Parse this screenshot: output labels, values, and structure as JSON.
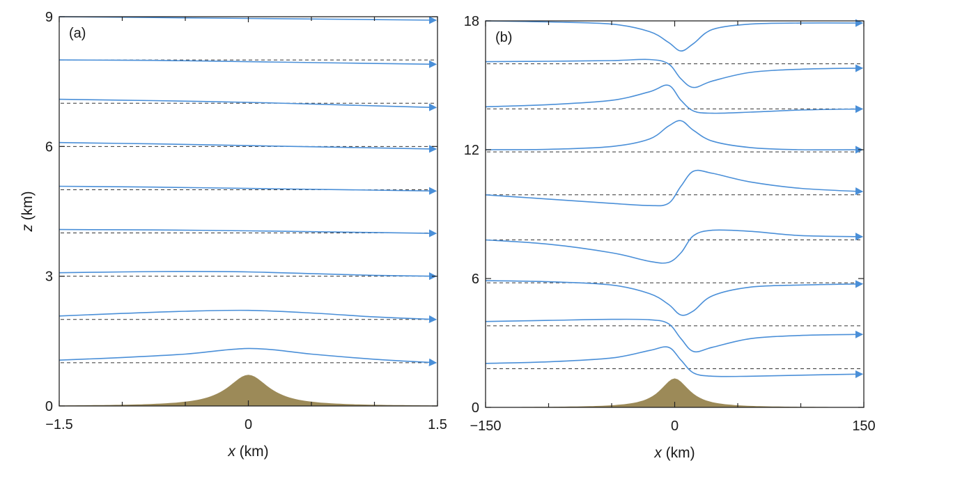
{
  "chart_data": [
    {
      "type": "line",
      "panel_label": "(a)",
      "xlabel_var": "x",
      "xlabel_unit": " (km)",
      "ylabel_var": "z",
      "ylabel_unit": " (km)",
      "xlim": [
        -1.5,
        1.5
      ],
      "ylim": [
        0,
        9
      ],
      "xticks": [
        -1.5,
        0,
        1.5
      ],
      "xtick_labels": [
        "−1.5",
        "0",
        "1.5"
      ],
      "yticks": [
        0,
        3,
        6,
        9
      ],
      "ytick_labels": [
        "0",
        "3",
        "6",
        "9"
      ],
      "minor_xticks": [
        -1.0,
        -0.5,
        0.5,
        1.0
      ],
      "terrain": {
        "peak_height_km": 0.72,
        "half_width_km": 0.2
      },
      "dashed_baselines": [
        1,
        2,
        3,
        4,
        5,
        6,
        7,
        8
      ],
      "streamlines": [
        {
          "x": [
            -1.5,
            -1.0,
            -0.5,
            -0.2,
            0.0,
            0.2,
            0.5,
            1.0,
            1.5
          ],
          "y": [
            1.06,
            1.12,
            1.2,
            1.29,
            1.33,
            1.3,
            1.2,
            1.08,
            1.0
          ]
        },
        {
          "x": [
            -1.5,
            -1.0,
            -0.5,
            0.0,
            0.5,
            1.0,
            1.5
          ],
          "y": [
            2.08,
            2.14,
            2.19,
            2.21,
            2.15,
            2.06,
            2.0
          ]
        },
        {
          "x": [
            -1.5,
            -1.0,
            -0.5,
            0.0,
            0.5,
            1.0,
            1.5
          ],
          "y": [
            3.08,
            3.1,
            3.11,
            3.1,
            3.06,
            3.02,
            3.0
          ]
        },
        {
          "x": [
            -1.5,
            -0.75,
            0.0,
            0.75,
            1.5
          ],
          "y": [
            4.08,
            4.07,
            4.05,
            4.02,
            3.99
          ]
        },
        {
          "x": [
            -1.5,
            -0.75,
            0.0,
            0.75,
            1.5
          ],
          "y": [
            5.08,
            5.06,
            5.03,
            5.0,
            4.97
          ]
        },
        {
          "x": [
            -1.5,
            -0.75,
            0.0,
            0.75,
            1.5
          ],
          "y": [
            6.09,
            6.06,
            6.02,
            5.98,
            5.94
          ]
        },
        {
          "x": [
            -1.5,
            -0.75,
            0.0,
            0.75,
            1.5
          ],
          "y": [
            7.09,
            7.06,
            7.02,
            6.96,
            6.9
          ]
        },
        {
          "x": [
            -1.5,
            -0.75,
            0.0,
            0.75,
            1.5
          ],
          "y": [
            8.0,
            7.99,
            7.96,
            7.93,
            7.9
          ]
        },
        {
          "x": [
            -1.5,
            -0.75,
            0.0,
            0.75,
            1.5
          ],
          "y": [
            9.0,
            8.98,
            8.96,
            8.94,
            8.92
          ]
        }
      ]
    },
    {
      "type": "line",
      "panel_label": "(b)",
      "xlabel_var": "x",
      "xlabel_unit": " (km)",
      "xlim": [
        -150,
        150
      ],
      "ylim": [
        0,
        18
      ],
      "xticks": [
        -150,
        0,
        150
      ],
      "xtick_labels": [
        "−150",
        "0",
        "150"
      ],
      "yticks": [
        0,
        6,
        12,
        18
      ],
      "ytick_labels": [
        "0",
        "6",
        "12",
        "18"
      ],
      "minor_xticks": [
        -100,
        -50,
        50,
        100
      ],
      "terrain": {
        "peak_height_km": 1.35,
        "half_width_km": 14
      },
      "dashed_baselines": [
        1.8,
        3.8,
        5.8,
        7.8,
        9.9,
        11.9,
        13.9,
        16.0
      ],
      "streamlines": [
        {
          "x": [
            -150,
            -100,
            -50,
            -20,
            -5,
            5,
            15,
            30,
            60,
            100,
            150
          ],
          "y": [
            2.05,
            2.12,
            2.3,
            2.65,
            2.8,
            2.2,
            1.6,
            1.45,
            1.45,
            1.5,
            1.55
          ]
        },
        {
          "x": [
            -150,
            -100,
            -50,
            -20,
            -5,
            5,
            15,
            30,
            60,
            100,
            150
          ],
          "y": [
            4.0,
            4.05,
            4.1,
            4.08,
            3.9,
            3.2,
            2.6,
            2.8,
            3.2,
            3.35,
            3.4
          ]
        },
        {
          "x": [
            -150,
            -100,
            -50,
            -20,
            -5,
            5,
            15,
            30,
            60,
            100,
            150
          ],
          "y": [
            5.9,
            5.85,
            5.7,
            5.3,
            4.8,
            4.3,
            4.5,
            5.2,
            5.6,
            5.7,
            5.75
          ]
        },
        {
          "x": [
            -150,
            -100,
            -50,
            -20,
            -5,
            5,
            15,
            30,
            60,
            100,
            150
          ],
          "y": [
            7.8,
            7.6,
            7.2,
            6.8,
            6.75,
            7.2,
            8.0,
            8.25,
            8.2,
            8.0,
            7.95
          ]
        },
        {
          "x": [
            -150,
            -100,
            -50,
            -20,
            -5,
            5,
            15,
            30,
            60,
            100,
            150
          ],
          "y": [
            9.9,
            9.7,
            9.5,
            9.4,
            9.5,
            10.3,
            11.0,
            10.9,
            10.5,
            10.2,
            10.05
          ]
        },
        {
          "x": [
            -150,
            -100,
            -50,
            -20,
            -5,
            5,
            15,
            30,
            60,
            100,
            150
          ],
          "y": [
            12.0,
            12.02,
            12.15,
            12.5,
            13.1,
            13.35,
            12.9,
            12.4,
            12.1,
            12.0,
            12.0
          ]
        },
        {
          "x": [
            -150,
            -100,
            -50,
            -20,
            -5,
            5,
            15,
            30,
            60,
            100,
            150
          ],
          "y": [
            14.0,
            14.1,
            14.3,
            14.7,
            15.0,
            14.3,
            13.8,
            13.7,
            13.75,
            13.85,
            13.9
          ]
        },
        {
          "x": [
            -150,
            -100,
            -50,
            -20,
            -5,
            5,
            15,
            30,
            60,
            100,
            150
          ],
          "y": [
            16.1,
            16.12,
            16.15,
            16.2,
            16.0,
            15.3,
            14.9,
            15.2,
            15.6,
            15.75,
            15.8
          ]
        },
        {
          "x": [
            -150,
            -100,
            -50,
            -20,
            -5,
            5,
            15,
            30,
            60,
            100,
            150
          ],
          "y": [
            18.0,
            17.95,
            17.85,
            17.5,
            17.0,
            16.6,
            16.95,
            17.6,
            17.85,
            17.9,
            17.9
          ]
        }
      ]
    }
  ]
}
